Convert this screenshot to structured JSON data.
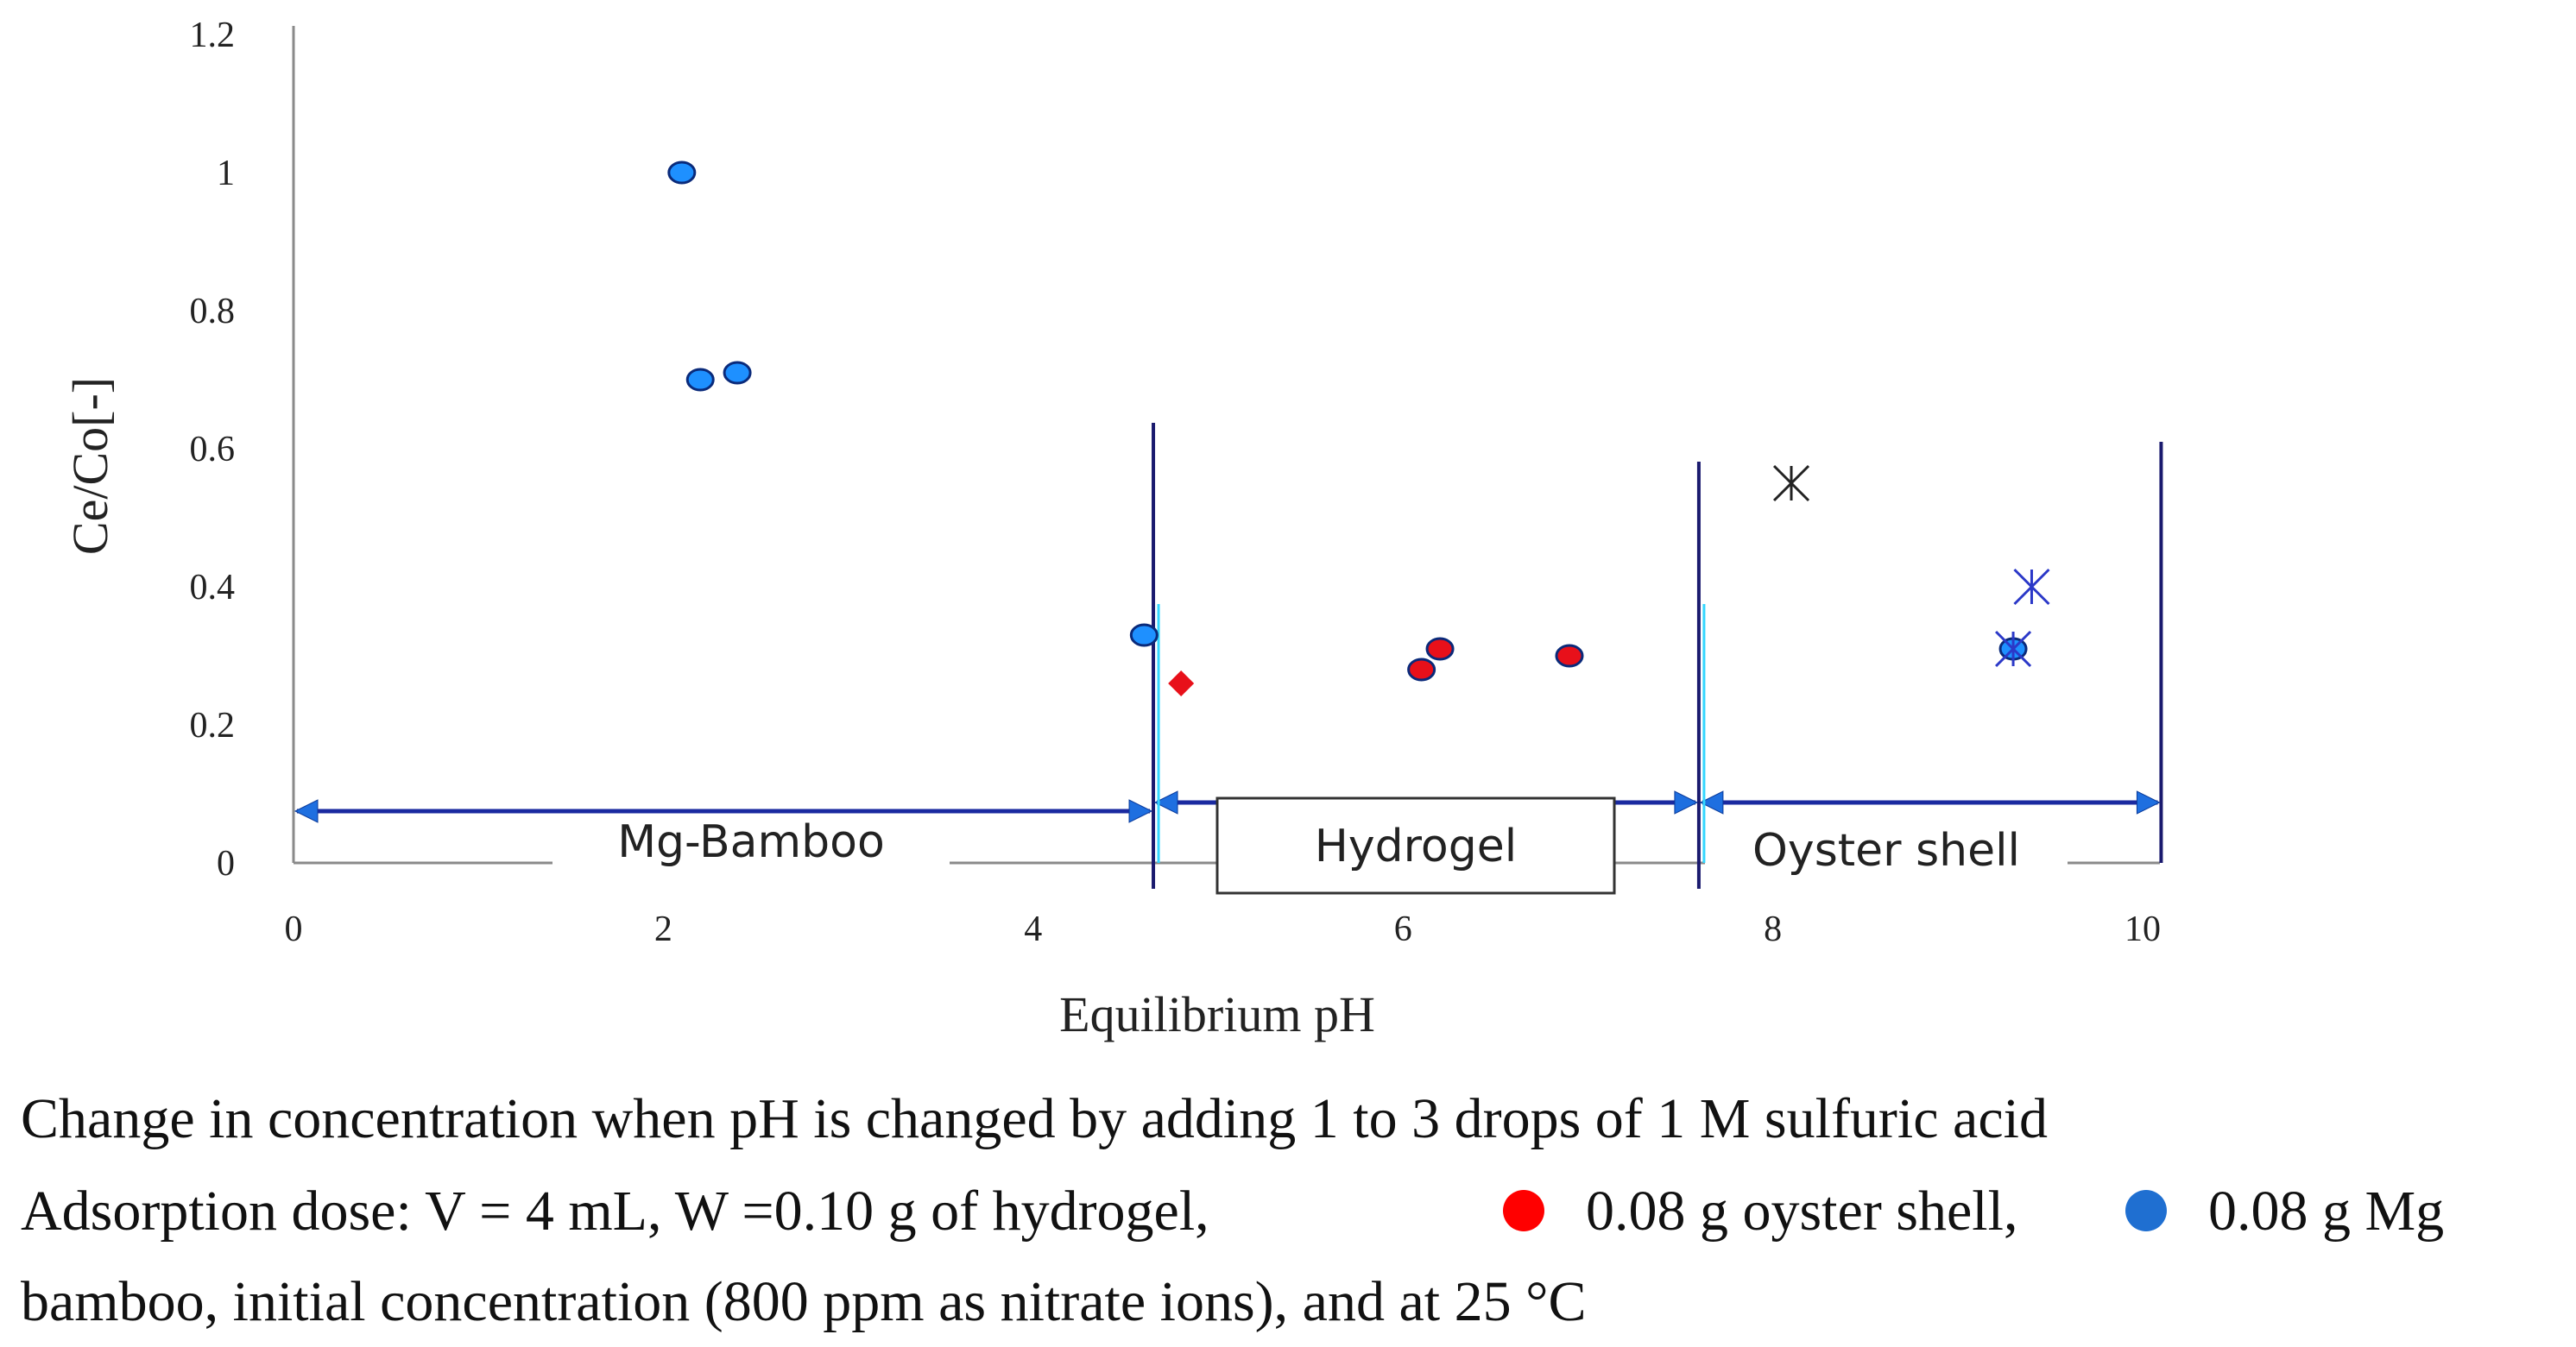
{
  "chart_data": {
    "type": "scatter",
    "xlabel": "Equilibrium pH",
    "ylabel": "Ce/Co[-]",
    "xlim": [
      0,
      10
    ],
    "ylim": [
      0,
      1.2
    ],
    "x_ticks": [
      "0",
      "2",
      "4",
      "6",
      "8",
      "10"
    ],
    "y_ticks": [
      "0",
      "0.2",
      "0.4",
      "0.6",
      "0.8",
      "1",
      "1.2"
    ],
    "series": [
      {
        "color": "#1e90ff",
        "marker": "circle",
        "points": [
          {
            "x": 2.1,
            "y": 1.0
          },
          {
            "x": 2.2,
            "y": 0.7
          },
          {
            "x": 2.4,
            "y": 0.71
          },
          {
            "x": 4.6,
            "y": 0.33
          },
          {
            "x": 9.3,
            "y": 0.31
          }
        ]
      },
      {
        "color": "#e8101a",
        "marker": "circle",
        "points": [
          {
            "x": 6.1,
            "y": 0.28
          },
          {
            "x": 6.2,
            "y": 0.31
          },
          {
            "x": 6.9,
            "y": 0.3
          }
        ]
      },
      {
        "color": "#e8101a",
        "marker": "diamond",
        "points": [
          {
            "x": 4.8,
            "y": 0.26
          }
        ]
      },
      {
        "color": "#222222",
        "marker": "star",
        "points": [
          {
            "x": 8.1,
            "y": 0.55
          }
        ]
      },
      {
        "color": "#2b38c8",
        "marker": "star",
        "points": [
          {
            "x": 9.4,
            "y": 0.4
          },
          {
            "x": 9.3,
            "y": 0.31
          }
        ]
      }
    ],
    "regions": [
      {
        "label": "Mg-Bamboo",
        "x_from": 0,
        "x_to": 4.65
      },
      {
        "label": "Hydrogel",
        "x_from": 4.65,
        "x_to": 7.6
      },
      {
        "label": "Oyster shell",
        "x_from": 7.6,
        "x_to": 10.1
      }
    ]
  },
  "caption": {
    "line1": "Change in concentration when pH is changed by adding 1 to 3 drops of 1 M sulfuric acid",
    "line2a": "Adsorption dose: V = 4 mL, W =0.10 g of hydrogel,",
    "line2b": "0.08 g oyster shell,",
    "line2c": "0.08 g Mg",
    "line3": "bamboo, initial concentration (800 ppm as nitrate ions), and at 25 °C",
    "dot1_color": "#ff0000",
    "dot2_color": "#1f6fd1"
  }
}
